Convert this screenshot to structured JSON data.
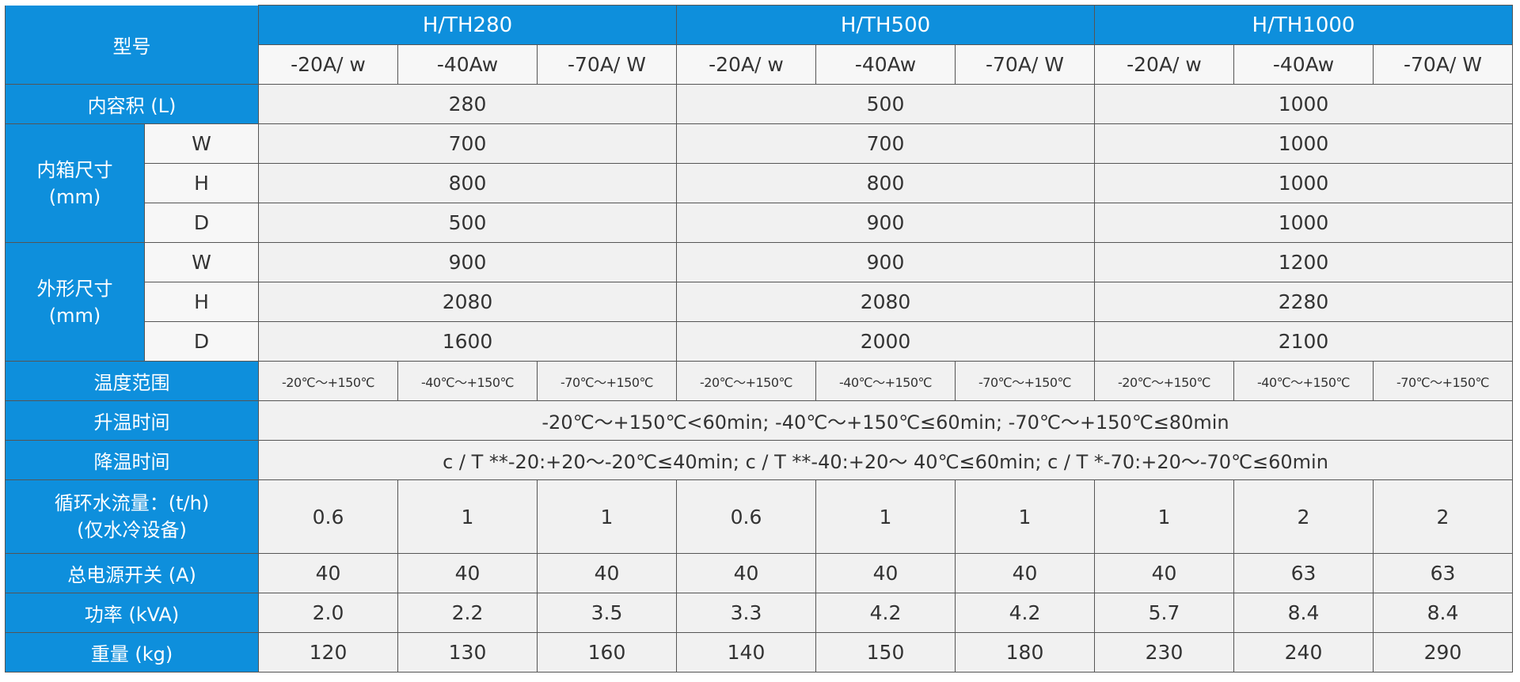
{
  "table": {
    "model_label": "型号",
    "models": [
      "H/TH280",
      "H/TH500",
      "H/TH1000"
    ],
    "variants": [
      "-20A/ w",
      "-40Aw",
      "-70A/ W",
      "-20A/ w",
      "-40Aw",
      "-70A/ W",
      "-20A/ w",
      "-40Aw",
      "-70A/ W"
    ],
    "volume": {
      "label": "内容积 (L)",
      "values": [
        "280",
        "500",
        "1000"
      ]
    },
    "inner": {
      "label": "内箱尺寸",
      "unit": "(mm)",
      "rows": [
        {
          "dim": "W",
          "values": [
            "700",
            "700",
            "1000"
          ]
        },
        {
          "dim": "H",
          "values": [
            "800",
            "800",
            "1000"
          ]
        },
        {
          "dim": "D",
          "values": [
            "500",
            "900",
            "1000"
          ]
        }
      ]
    },
    "outer": {
      "label": "外形尺寸",
      "unit": "(mm)",
      "rows": [
        {
          "dim": "W",
          "values": [
            "900",
            "900",
            "1200"
          ]
        },
        {
          "dim": "H",
          "values": [
            "2080",
            "2080",
            "2280"
          ]
        },
        {
          "dim": "D",
          "values": [
            "1600",
            "2000",
            "2100"
          ]
        }
      ]
    },
    "temp": {
      "label": "温度范围",
      "values": [
        "-20℃～+150℃",
        "-40℃～+150℃",
        "-70℃～+150℃",
        "-20℃～+150℃",
        "-40℃～+150℃",
        "-70℃～+150℃",
        "-20℃～+150℃",
        "-40℃～+150℃",
        "-70℃～+150℃"
      ]
    },
    "heat": {
      "label": "升温时间",
      "value": "-20℃～+150℃<60min; -40℃～+150℃≤60min; -70℃～+150℃≤80min"
    },
    "cool": {
      "label": "降温时间",
      "value": "c / T **-20:+20～-20℃≤40min;  c / T **-40:+20～ 40℃≤60min;  c / T *-70:+20～-70℃≤60min"
    },
    "water": {
      "label": "循环水流量：(t/h)",
      "note": "(仅水冷设备)",
      "values": [
        "0.6",
        "1",
        "1",
        "0.6",
        "1",
        "1",
        "1",
        "2",
        "2"
      ]
    },
    "switch": {
      "label": "总电源开关 (A)",
      "values": [
        "40",
        "40",
        "40",
        "40",
        "40",
        "40",
        "40",
        "63",
        "63"
      ]
    },
    "power": {
      "label": "功率 (kVA)",
      "values": [
        "2.0",
        "2.2",
        "3.5",
        "3.3",
        "4.2",
        "4.2",
        "5.7",
        "8.4",
        "8.4"
      ]
    },
    "weight": {
      "label": "重量 (kg)",
      "values": [
        "120",
        "130",
        "160",
        "140",
        "150",
        "180",
        "230",
        "240",
        "290"
      ]
    }
  }
}
